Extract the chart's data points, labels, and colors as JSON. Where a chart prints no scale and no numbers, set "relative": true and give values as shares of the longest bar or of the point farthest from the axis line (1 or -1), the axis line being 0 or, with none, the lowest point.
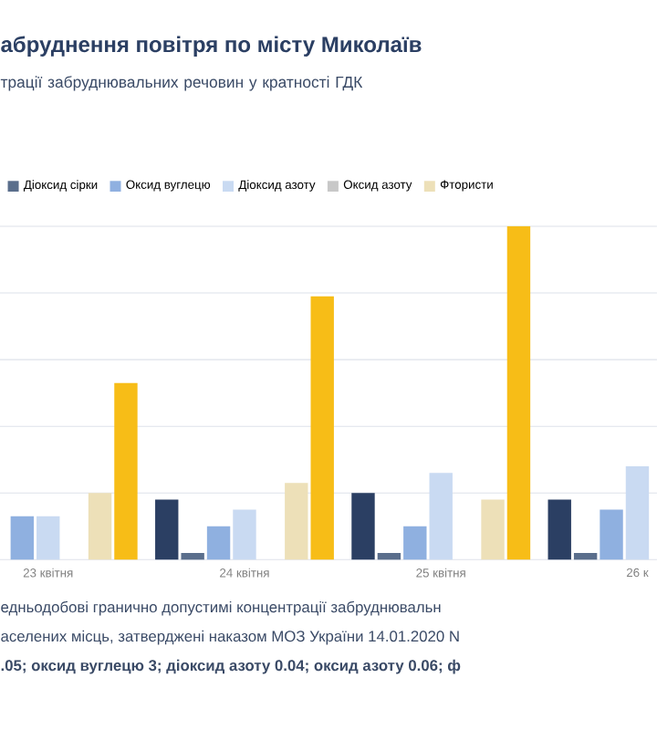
{
  "chart_data": {
    "type": "bar",
    "title": "абруднення повітря по місту Миколаїв",
    "subtitle": "трації забруднювальних речовин у кратності ГДК",
    "categories": [
      "23 квітня",
      "24 квітня",
      "25 квітня",
      "26 к"
    ],
    "relative": true,
    "grid": "y",
    "legend": "top left",
    "series": [
      {
        "color": "#2b3f63",
        "values": [
          null,
          0.18,
          0.2,
          0.18
        ]
      },
      {
        "name": "Діоксид сірки",
        "color": "#5a6e8c",
        "values": [
          null,
          0.02,
          0.02,
          0.02
        ]
      },
      {
        "name": "Оксид вуглецю",
        "color": "#8fb0e0",
        "values": [
          0.13,
          0.1,
          0.1,
          0.15
        ]
      },
      {
        "name": "Діоксид азоту",
        "color": "#c9daf2",
        "values": [
          0.13,
          0.15,
          0.26,
          0.28
        ]
      },
      {
        "name": "Оксид азоту",
        "color": "#c8c8c8",
        "values": [
          0,
          0,
          0,
          null
        ]
      },
      {
        "name": "Фтористи",
        "color": "#ede0b8",
        "values": [
          0.2,
          0.23,
          0.18,
          null
        ]
      },
      {
        "color": "#f7bd17",
        "values": [
          0.53,
          0.79,
          1,
          null
        ]
      }
    ],
    "annotations": [
      "едньодобові гранично допустимі концентрації забруднювальн",
      "аселених місць, затверджені наказом МОЗ України 14.01.2020 N",
      ".05; оксид вуглецю 3; діоксид азоту 0.04; оксид азоту 0.06; ф"
    ]
  }
}
